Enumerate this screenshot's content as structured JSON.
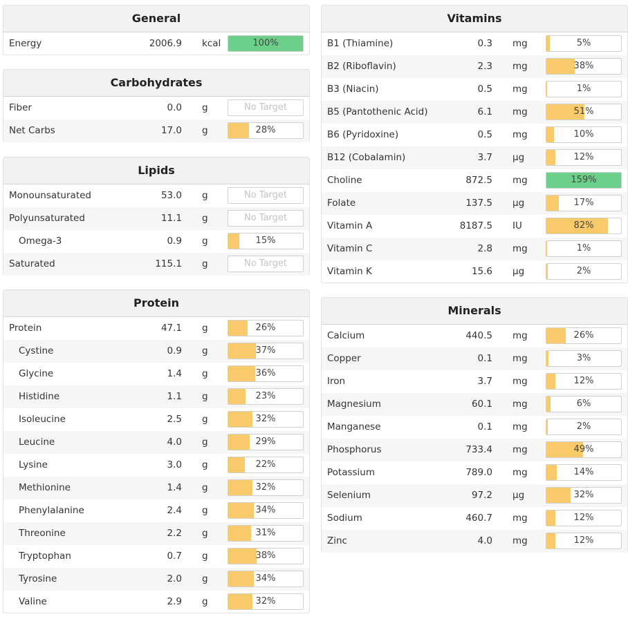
{
  "general": {
    "title": "General",
    "rows": [
      {
        "name": "Energy",
        "amount": "2006.9",
        "unit": "kcal",
        "pct": "100%",
        "value": 100
      }
    ]
  },
  "carbs": {
    "title": "Carbohydrates",
    "rows": [
      {
        "name": "Fiber",
        "amount": "0.0",
        "unit": "g",
        "pct": "No Target",
        "value": null
      },
      {
        "name": "Net Carbs",
        "amount": "17.0",
        "unit": "g",
        "pct": "28%",
        "value": 28
      }
    ]
  },
  "lipids": {
    "title": "Lipids",
    "rows": [
      {
        "name": "Monounsaturated",
        "amount": "53.0",
        "unit": "g",
        "pct": "No Target",
        "value": null
      },
      {
        "name": "Polyunsaturated",
        "amount": "11.1",
        "unit": "g",
        "pct": "No Target",
        "value": null
      },
      {
        "name": "Omega-3",
        "amount": "0.9",
        "unit": "g",
        "pct": "15%",
        "value": 15,
        "indent": true
      },
      {
        "name": "Saturated",
        "amount": "115.1",
        "unit": "g",
        "pct": "No Target",
        "value": null
      }
    ]
  },
  "protein": {
    "title": "Protein",
    "rows": [
      {
        "name": "Protein",
        "amount": "47.1",
        "unit": "g",
        "pct": "26%",
        "value": 26
      },
      {
        "name": "Cystine",
        "amount": "0.9",
        "unit": "g",
        "pct": "37%",
        "value": 37,
        "indent": true
      },
      {
        "name": "Glycine",
        "amount": "1.4",
        "unit": "g",
        "pct": "36%",
        "value": 36,
        "indent": true
      },
      {
        "name": "Histidine",
        "amount": "1.1",
        "unit": "g",
        "pct": "23%",
        "value": 23,
        "indent": true
      },
      {
        "name": "Isoleucine",
        "amount": "2.5",
        "unit": "g",
        "pct": "32%",
        "value": 32,
        "indent": true
      },
      {
        "name": "Leucine",
        "amount": "4.0",
        "unit": "g",
        "pct": "29%",
        "value": 29,
        "indent": true
      },
      {
        "name": "Lysine",
        "amount": "3.0",
        "unit": "g",
        "pct": "22%",
        "value": 22,
        "indent": true
      },
      {
        "name": "Methionine",
        "amount": "1.4",
        "unit": "g",
        "pct": "32%",
        "value": 32,
        "indent": true
      },
      {
        "name": "Phenylalanine",
        "amount": "2.4",
        "unit": "g",
        "pct": "34%",
        "value": 34,
        "indent": true
      },
      {
        "name": "Threonine",
        "amount": "2.2",
        "unit": "g",
        "pct": "31%",
        "value": 31,
        "indent": true
      },
      {
        "name": "Tryptophan",
        "amount": "0.7",
        "unit": "g",
        "pct": "38%",
        "value": 38,
        "indent": true
      },
      {
        "name": "Tyrosine",
        "amount": "2.0",
        "unit": "g",
        "pct": "34%",
        "value": 34,
        "indent": true
      },
      {
        "name": "Valine",
        "amount": "2.9",
        "unit": "g",
        "pct": "32%",
        "value": 32,
        "indent": true
      }
    ]
  },
  "vitamins": {
    "title": "Vitamins",
    "rows": [
      {
        "name": "B1 (Thiamine)",
        "amount": "0.3",
        "unit": "mg",
        "pct": "5%",
        "value": 5
      },
      {
        "name": "B2 (Riboflavin)",
        "amount": "2.3",
        "unit": "mg",
        "pct": "38%",
        "value": 38
      },
      {
        "name": "B3 (Niacin)",
        "amount": "0.5",
        "unit": "mg",
        "pct": "1%",
        "value": 1
      },
      {
        "name": "B5 (Pantothenic Acid)",
        "amount": "6.1",
        "unit": "mg",
        "pct": "51%",
        "value": 51
      },
      {
        "name": "B6 (Pyridoxine)",
        "amount": "0.5",
        "unit": "mg",
        "pct": "10%",
        "value": 10
      },
      {
        "name": "B12 (Cobalamin)",
        "amount": "3.7",
        "unit": "µg",
        "pct": "12%",
        "value": 12
      },
      {
        "name": "Choline",
        "amount": "872.5",
        "unit": "mg",
        "pct": "159%",
        "value": 159
      },
      {
        "name": "Folate",
        "amount": "137.5",
        "unit": "µg",
        "pct": "17%",
        "value": 17
      },
      {
        "name": "Vitamin A",
        "amount": "8187.5",
        "unit": "IU",
        "pct": "82%",
        "value": 82
      },
      {
        "name": "Vitamin C",
        "amount": "2.8",
        "unit": "mg",
        "pct": "1%",
        "value": 1
      },
      {
        "name": "Vitamin K",
        "amount": "15.6",
        "unit": "µg",
        "pct": "2%",
        "value": 2
      }
    ]
  },
  "minerals": {
    "title": "Minerals",
    "rows": [
      {
        "name": "Calcium",
        "amount": "440.5",
        "unit": "mg",
        "pct": "26%",
        "value": 26
      },
      {
        "name": "Copper",
        "amount": "0.1",
        "unit": "mg",
        "pct": "3%",
        "value": 3
      },
      {
        "name": "Iron",
        "amount": "3.7",
        "unit": "mg",
        "pct": "12%",
        "value": 12
      },
      {
        "name": "Magnesium",
        "amount": "60.1",
        "unit": "mg",
        "pct": "6%",
        "value": 6
      },
      {
        "name": "Manganese",
        "amount": "0.1",
        "unit": "mg",
        "pct": "2%",
        "value": 2
      },
      {
        "name": "Phosphorus",
        "amount": "733.4",
        "unit": "mg",
        "pct": "49%",
        "value": 49
      },
      {
        "name": "Potassium",
        "amount": "789.0",
        "unit": "mg",
        "pct": "14%",
        "value": 14
      },
      {
        "name": "Selenium",
        "amount": "97.2",
        "unit": "µg",
        "pct": "32%",
        "value": 32
      },
      {
        "name": "Sodium",
        "amount": "460.7",
        "unit": "mg",
        "pct": "12%",
        "value": 12
      },
      {
        "name": "Zinc",
        "amount": "4.0",
        "unit": "mg",
        "pct": "12%",
        "value": 12
      }
    ]
  }
}
